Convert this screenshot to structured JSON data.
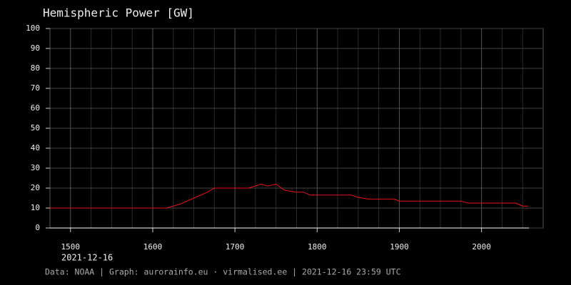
{
  "chart_data": {
    "type": "line",
    "title": "Hemispheric Power [GW]",
    "date_label": "2021-12-16",
    "footer": "Data: NOAA | Graph: aurorainfo.eu · virmalised.ee | 2021-12-16 23:59 UTC",
    "x": [
      885,
      970,
      980,
      990,
      1000,
      1005,
      1030,
      1039,
      1044,
      1050,
      1056,
      1064,
      1070,
      1075,
      1105,
      1109,
      1117,
      1136,
      1140,
      1185,
      1190,
      1225,
      1230,
      1234
    ],
    "series": [
      {
        "name": "Hemispheric Power",
        "color": "#e8111a",
        "values": [
          10,
          10,
          12,
          15,
          18,
          20,
          20,
          22,
          21,
          22,
          19,
          18,
          18,
          16.5,
          16.5,
          15.5,
          14.5,
          14.5,
          13.5,
          13.5,
          12.5,
          12.5,
          11,
          11
        ]
      }
    ],
    "xlim": [
      885,
      1245
    ],
    "xticks": [
      {
        "value": 900,
        "label": "1500"
      },
      {
        "value": 960,
        "label": "1600"
      },
      {
        "value": 1020,
        "label": "1700"
      },
      {
        "value": 1080,
        "label": "1800"
      },
      {
        "value": 1140,
        "label": "1900"
      },
      {
        "value": 1200,
        "label": "2000"
      }
    ],
    "xminorticks": [
      915,
      930,
      945,
      975,
      990,
      1005,
      1035,
      1050,
      1065,
      1095,
      1110,
      1125,
      1155,
      1170,
      1185,
      1215,
      1230
    ],
    "ylim": [
      0,
      100
    ],
    "yticks": [
      0,
      10,
      20,
      30,
      40,
      50,
      60,
      70,
      80,
      90,
      100
    ],
    "grid": true
  }
}
